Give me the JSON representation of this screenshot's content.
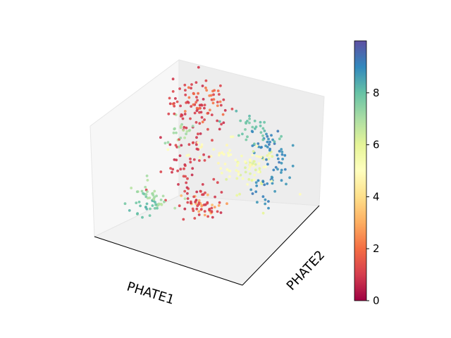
{
  "chart_data": {
    "type": "scatter",
    "projection": "3d",
    "title": "",
    "xlabel": "PHATE1",
    "ylabel": "PHATE2",
    "zlabel": "",
    "axis_ticks_shown": false,
    "colormap": "Spectral",
    "colormap_stops": [
      "#9e0142",
      "#d53e4f",
      "#f46d43",
      "#fdae61",
      "#fee08b",
      "#ffffbf",
      "#e6f598",
      "#abdda4",
      "#66c2a5",
      "#3288bd",
      "#5e4fa2"
    ],
    "colorbar": {
      "range": [
        0,
        10
      ],
      "ticks": [
        "0",
        "2",
        "4",
        "6",
        "8"
      ]
    },
    "clusters": [
      {
        "label": 1,
        "center": [
          -0.45,
          0.55,
          0.55
        ],
        "spread": [
          0.18,
          0.12,
          0.28
        ],
        "count": 80
      },
      {
        "label": 1,
        "center": [
          -0.3,
          0.1,
          0.0
        ],
        "spread": [
          0.15,
          0.2,
          0.2
        ],
        "count": 40
      },
      {
        "label": 1,
        "center": [
          0.05,
          -0.35,
          -0.25
        ],
        "spread": [
          0.18,
          0.12,
          0.08
        ],
        "count": 45
      },
      {
        "label": 2,
        "center": [
          -0.4,
          0.6,
          0.7
        ],
        "spread": [
          0.15,
          0.1,
          0.12
        ],
        "count": 25
      },
      {
        "label": 3,
        "center": [
          0.15,
          -0.4,
          -0.15
        ],
        "spread": [
          0.15,
          0.1,
          0.06
        ],
        "count": 20
      },
      {
        "label": 5,
        "center": [
          0.1,
          0.35,
          0.05
        ],
        "spread": [
          0.3,
          0.15,
          0.1
        ],
        "count": 60
      },
      {
        "label": 6,
        "center": [
          0.55,
          0.1,
          0.4
        ],
        "spread": [
          0.12,
          0.15,
          0.18
        ],
        "count": 35
      },
      {
        "label": 7,
        "center": [
          -0.65,
          0.45,
          0.1
        ],
        "spread": [
          0.1,
          0.15,
          0.15
        ],
        "count": 20
      },
      {
        "label": 7,
        "center": [
          -0.55,
          -0.4,
          -0.35
        ],
        "spread": [
          0.15,
          0.1,
          0.06
        ],
        "count": 30
      },
      {
        "label": 8,
        "center": [
          0.3,
          0.65,
          0.55
        ],
        "spread": [
          0.2,
          0.1,
          0.1
        ],
        "count": 30
      },
      {
        "label": 8,
        "center": [
          -0.55,
          -0.55,
          -0.4
        ],
        "spread": [
          0.12,
          0.08,
          0.05
        ],
        "count": 25
      },
      {
        "label": 9,
        "center": [
          0.7,
          0.3,
          0.15
        ],
        "spread": [
          0.1,
          0.25,
          0.2
        ],
        "count": 45
      },
      {
        "label": 9,
        "center": [
          0.55,
          0.45,
          0.55
        ],
        "spread": [
          0.12,
          0.1,
          0.08
        ],
        "count": 25
      }
    ]
  }
}
